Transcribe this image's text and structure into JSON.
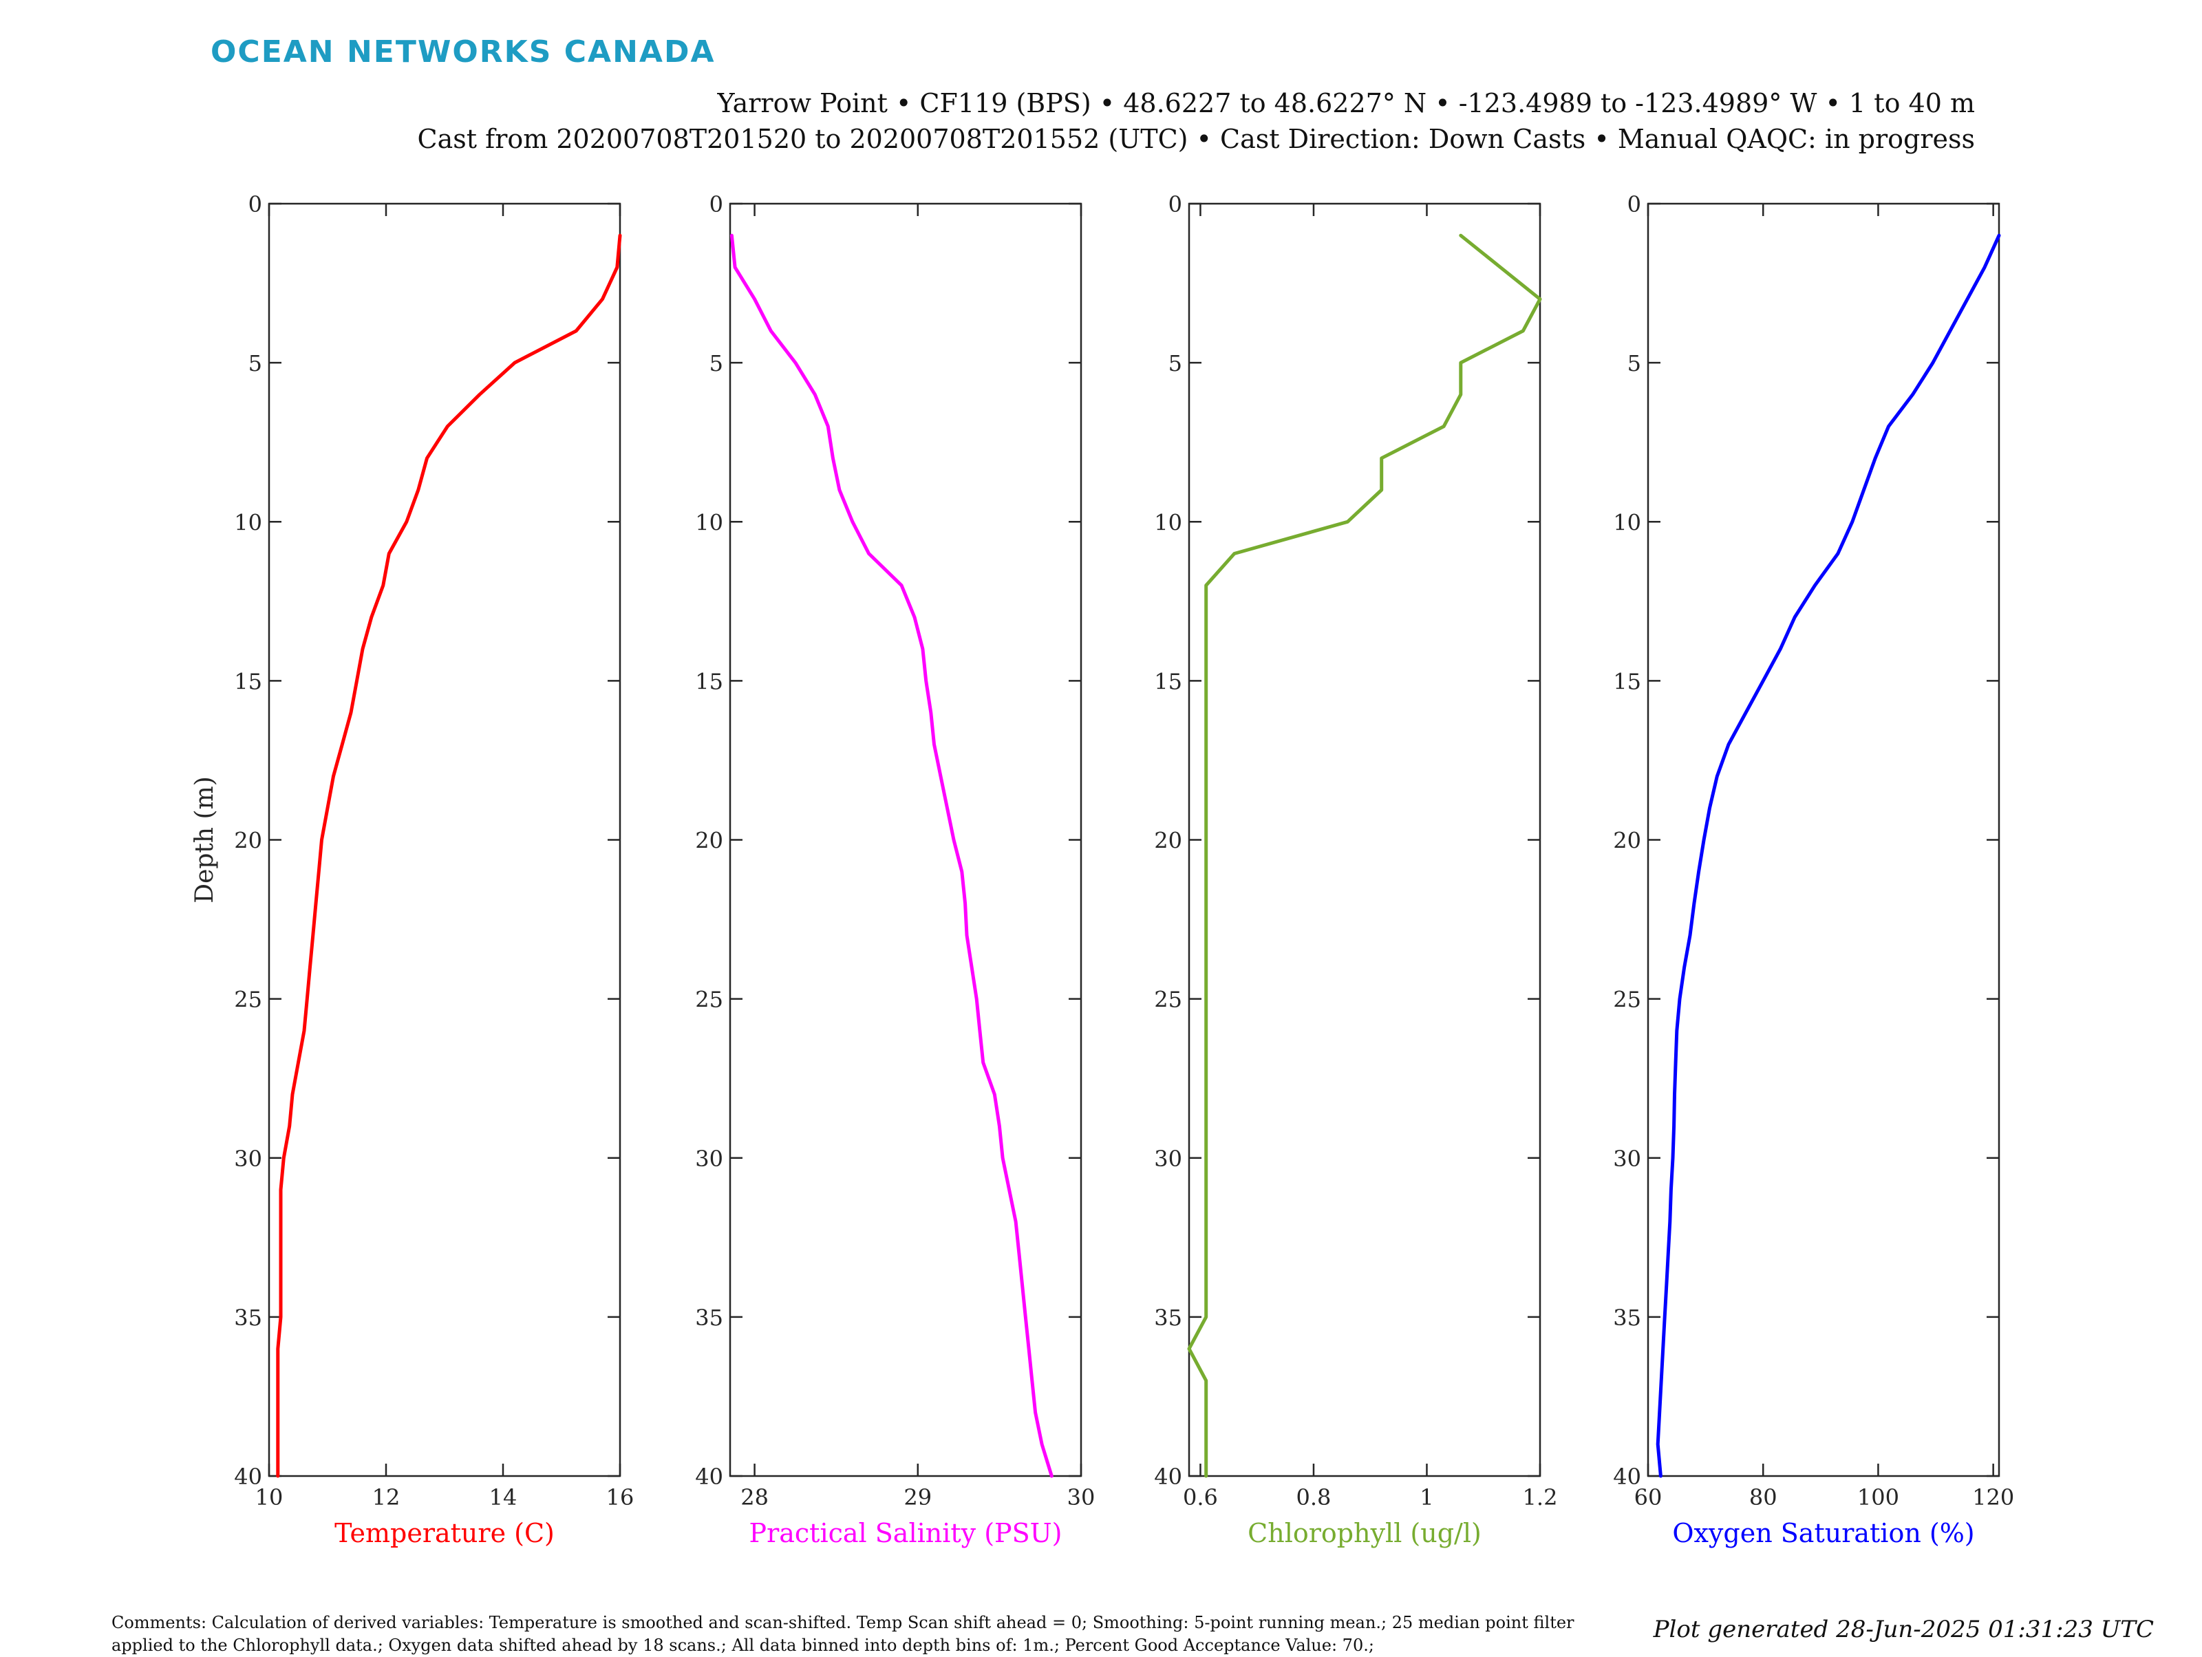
{
  "brand": {
    "name": "OCEAN NETWORKS CANADA",
    "color": "#1e9cc3"
  },
  "header": {
    "line1": "Yarrow Point • CF119 (BPS) • 48.6227 to 48.6227° N • -123.4989 to -123.4989° W • 1 to 40 m",
    "line2": "Cast from 20200708T201520 to 20200708T201552 (UTC) • Cast Direction: Down Casts • Manual QAQC: in progress"
  },
  "footer": {
    "comments": "Comments: Calculation of derived variables: Temperature is smoothed and scan-shifted. Temp Scan shift ahead = 0; Smoothing: 5-point running mean.; 25 median point filter applied to the Chlorophyll data.; Oxygen data shifted ahead by 18 scans.; All data binned into depth bins of: 1m.; Percent Good Acceptance Value: 70.;",
    "generated": "Plot generated 28-Jun-2025 01:31:23 UTC"
  },
  "chart_data": [
    {
      "type": "line",
      "xlabel": "Temperature (C)",
      "ylabel": "Depth (m)",
      "color": "#ff0000",
      "xlim": [
        10,
        16
      ],
      "ylim": [
        0,
        40
      ],
      "y_reversed": true,
      "xticks": [
        "10",
        "12",
        "14",
        "16"
      ],
      "yticks": [
        "0",
        "5",
        "10",
        "15",
        "20",
        "25",
        "30",
        "35",
        "40"
      ],
      "x": [
        16.0,
        15.95,
        15.7,
        15.25,
        14.2,
        13.6,
        13.05,
        12.7,
        12.55,
        12.35,
        12.05,
        11.95,
        11.75,
        11.6,
        11.5,
        11.4,
        11.25,
        11.1,
        11.0,
        10.9,
        10.85,
        10.8,
        10.75,
        10.7,
        10.65,
        10.6,
        10.5,
        10.4,
        10.35,
        10.25,
        10.2,
        10.2,
        10.2,
        10.2,
        10.2,
        10.15,
        10.15,
        10.15,
        10.15,
        10.15
      ],
      "y": [
        1,
        2,
        3,
        4,
        5,
        6,
        7,
        8,
        9,
        10,
        11,
        12,
        13,
        14,
        15,
        16,
        17,
        18,
        19,
        20,
        21,
        22,
        23,
        24,
        25,
        26,
        27,
        28,
        29,
        30,
        31,
        32,
        33,
        34,
        35,
        36,
        37,
        38,
        39,
        40
      ]
    },
    {
      "type": "line",
      "xlabel": "Practical Salinity (PSU)",
      "color": "#ff00ff",
      "xlim": [
        27.85,
        30
      ],
      "ylim": [
        0,
        40
      ],
      "y_reversed": true,
      "xticks": [
        "28",
        "29",
        "30"
      ],
      "xtick_values": [
        28,
        29,
        30
      ],
      "yticks": [
        "0",
        "5",
        "10",
        "15",
        "20",
        "25",
        "30",
        "35",
        "40"
      ],
      "x": [
        27.86,
        27.88,
        28.0,
        28.1,
        28.25,
        28.37,
        28.45,
        28.48,
        28.52,
        28.6,
        28.7,
        28.9,
        28.98,
        29.03,
        29.05,
        29.08,
        29.1,
        29.14,
        29.18,
        29.22,
        29.27,
        29.29,
        29.3,
        29.33,
        29.36,
        29.38,
        29.4,
        29.47,
        29.5,
        29.52,
        29.56,
        29.6,
        29.62,
        29.64,
        29.66,
        29.68,
        29.7,
        29.72,
        29.76,
        29.82
      ],
      "y": [
        1,
        2,
        3,
        4,
        5,
        6,
        7,
        8,
        9,
        10,
        11,
        12,
        13,
        14,
        15,
        16,
        17,
        18,
        19,
        20,
        21,
        22,
        23,
        24,
        25,
        26,
        27,
        28,
        29,
        30,
        31,
        32,
        33,
        34,
        35,
        36,
        37,
        38,
        39,
        40
      ]
    },
    {
      "type": "line",
      "xlabel": "Chlorophyll (ug/l)",
      "color": "#77ac30",
      "xlim": [
        0.58,
        1.2
      ],
      "ylim": [
        0,
        40
      ],
      "y_reversed": true,
      "xticks": [
        "0.6",
        "0.8",
        "1",
        "1.2"
      ],
      "xtick_values": [
        0.6,
        0.8,
        1.0,
        1.2
      ],
      "yticks": [
        "0",
        "5",
        "10",
        "15",
        "20",
        "25",
        "30",
        "35",
        "40"
      ],
      "x": [
        1.06,
        1.13,
        1.2,
        1.17,
        1.06,
        1.06,
        1.06,
        1.03,
        0.92,
        0.92,
        0.86,
        0.66,
        0.61,
        0.61,
        0.61,
        0.61,
        0.61,
        0.61,
        0.61,
        0.61,
        0.61,
        0.61,
        0.61,
        0.61,
        0.61,
        0.61,
        0.61,
        0.61,
        0.61,
        0.61,
        0.61,
        0.61,
        0.61,
        0.61,
        0.61,
        0.61,
        0.58,
        0.61,
        0.61,
        0.61,
        0.61
      ],
      "y": [
        1,
        2,
        3,
        4,
        5,
        5.5,
        6,
        7,
        8,
        9,
        10,
        11,
        12,
        13,
        14,
        15,
        16,
        17,
        18,
        19,
        20,
        21,
        22,
        23,
        24,
        25,
        26,
        27,
        28,
        29,
        30,
        31,
        32,
        33,
        34,
        35,
        36,
        37,
        38,
        39,
        40
      ]
    },
    {
      "type": "line",
      "xlabel": "Oxygen Saturation (%)",
      "color": "#0000ff",
      "xlim": [
        60,
        121
      ],
      "ylim": [
        0,
        40
      ],
      "y_reversed": true,
      "xticks": [
        "60",
        "80",
        "100",
        "120"
      ],
      "xtick_values": [
        60,
        80,
        100,
        120
      ],
      "yticks": [
        "0",
        "5",
        "10",
        "15",
        "20",
        "25",
        "30",
        "35",
        "40"
      ],
      "x": [
        121.0,
        118.5,
        115.5,
        112.5,
        109.5,
        106.0,
        101.8,
        99.5,
        97.5,
        95.5,
        93.0,
        89.0,
        85.5,
        83.0,
        80.0,
        77.0,
        74.0,
        72.0,
        70.7,
        69.7,
        68.8,
        68.0,
        67.3,
        66.3,
        65.5,
        65.0,
        64.8,
        64.6,
        64.5,
        64.3,
        64.0,
        63.8,
        63.5,
        63.2,
        62.9,
        62.6,
        62.3,
        62.0,
        61.7,
        62.2
      ],
      "y": [
        1,
        2,
        3,
        4,
        5,
        6,
        7,
        8,
        9,
        10,
        11,
        12,
        13,
        14,
        15,
        16,
        17,
        18,
        19,
        20,
        21,
        22,
        23,
        24,
        25,
        26,
        27,
        28,
        29,
        30,
        31,
        32,
        33,
        34,
        35,
        36,
        37,
        38,
        39,
        40
      ]
    }
  ]
}
